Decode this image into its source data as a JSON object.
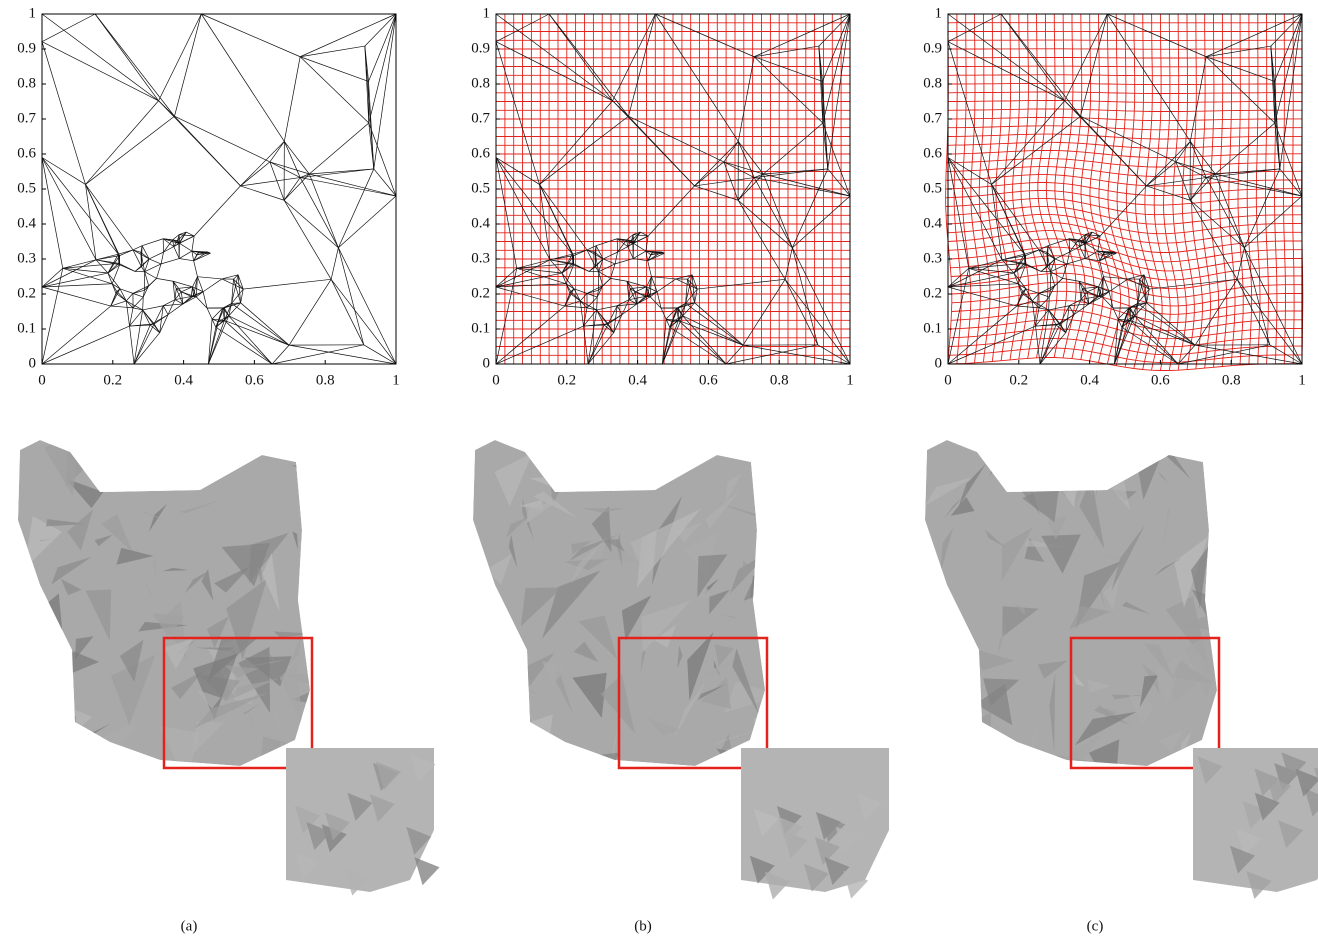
{
  "chart_data": [
    {
      "type": "mesh",
      "caption": "(a)",
      "grid": false,
      "xlim": [
        0,
        1
      ],
      "ylim": [
        0,
        1
      ],
      "xticks": [
        0,
        0.2,
        0.4,
        0.6,
        0.8,
        1
      ],
      "yticks": [
        0,
        0.1,
        0.2,
        0.3,
        0.4,
        0.5,
        0.6,
        0.7,
        0.8,
        0.9,
        1
      ]
    },
    {
      "type": "mesh",
      "caption": "(b)",
      "grid": true,
      "xlim": [
        0,
        1
      ],
      "ylim": [
        0,
        1
      ],
      "xticks": [
        0,
        0.2,
        0.4,
        0.6,
        0.8,
        1
      ],
      "yticks": [
        0,
        0.1,
        0.2,
        0.3,
        0.4,
        0.5,
        0.6,
        0.7,
        0.8,
        0.9,
        1
      ]
    },
    {
      "type": "mesh",
      "caption": "(c)",
      "grid": true,
      "xlim": [
        0,
        1
      ],
      "ylim": [
        0,
        1
      ],
      "xticks": [
        0,
        0.2,
        0.4,
        0.6,
        0.8,
        1
      ],
      "yticks": [
        0,
        0.1,
        0.2,
        0.3,
        0.4,
        0.5,
        0.6,
        0.7,
        0.8,
        0.9,
        1
      ]
    }
  ]
}
